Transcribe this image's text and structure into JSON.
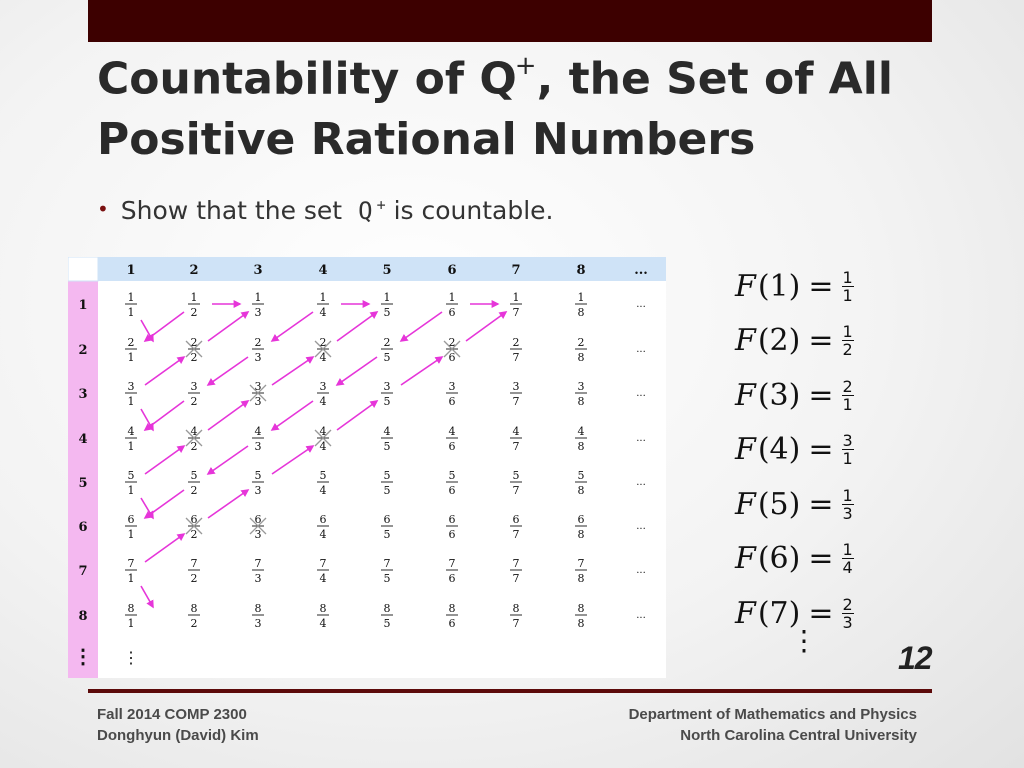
{
  "title": {
    "line1_before": "Countability of Q",
    "line1_sup": "+",
    "line1_after": ", the Set of All",
    "line2": "Positive Rational Numbers"
  },
  "bullet": {
    "before": "Show that the set",
    "symbol": "Q",
    "symbol_sup": "+",
    "after": "is countable."
  },
  "grid": {
    "column_headers": [
      "1",
      "2",
      "3",
      "4",
      "5",
      "6",
      "7",
      "8",
      "..."
    ],
    "row_headers": [
      "1",
      "2",
      "3",
      "4",
      "5",
      "6",
      "7",
      "8",
      "⋮"
    ],
    "ellipsis": "...",
    "bottom_dots": "⋮",
    "crossed_out": [
      [
        2,
        2
      ],
      [
        2,
        4
      ],
      [
        2,
        6
      ],
      [
        3,
        3
      ],
      [
        4,
        2
      ],
      [
        4,
        4
      ],
      [
        6,
        2
      ],
      [
        6,
        3
      ]
    ],
    "colors": {
      "header_row": "#cfe3f7",
      "header_col": "#f4b8f0",
      "arrow": "#e635d9",
      "cross": "#999999"
    }
  },
  "mapping": [
    {
      "n": "1",
      "num": "1",
      "den": "1"
    },
    {
      "n": "2",
      "num": "1",
      "den": "2"
    },
    {
      "n": "3",
      "num": "2",
      "den": "1"
    },
    {
      "n": "4",
      "num": "3",
      "den": "1"
    },
    {
      "n": "5",
      "num": "1",
      "den": "3"
    },
    {
      "n": "6",
      "num": "1",
      "den": "4"
    },
    {
      "n": "7",
      "num": "2",
      "den": "3"
    }
  ],
  "mapping_fn": "F",
  "mapping_eq": "=",
  "mapping_continue": "⋮",
  "page_number": "12",
  "footer": {
    "left_line1": "Fall 2014 COMP 2300",
    "left_line2": "Donghyun (David) Kim",
    "right_line1": "Department of Mathematics and Physics",
    "right_line2": "North Carolina Central University"
  }
}
